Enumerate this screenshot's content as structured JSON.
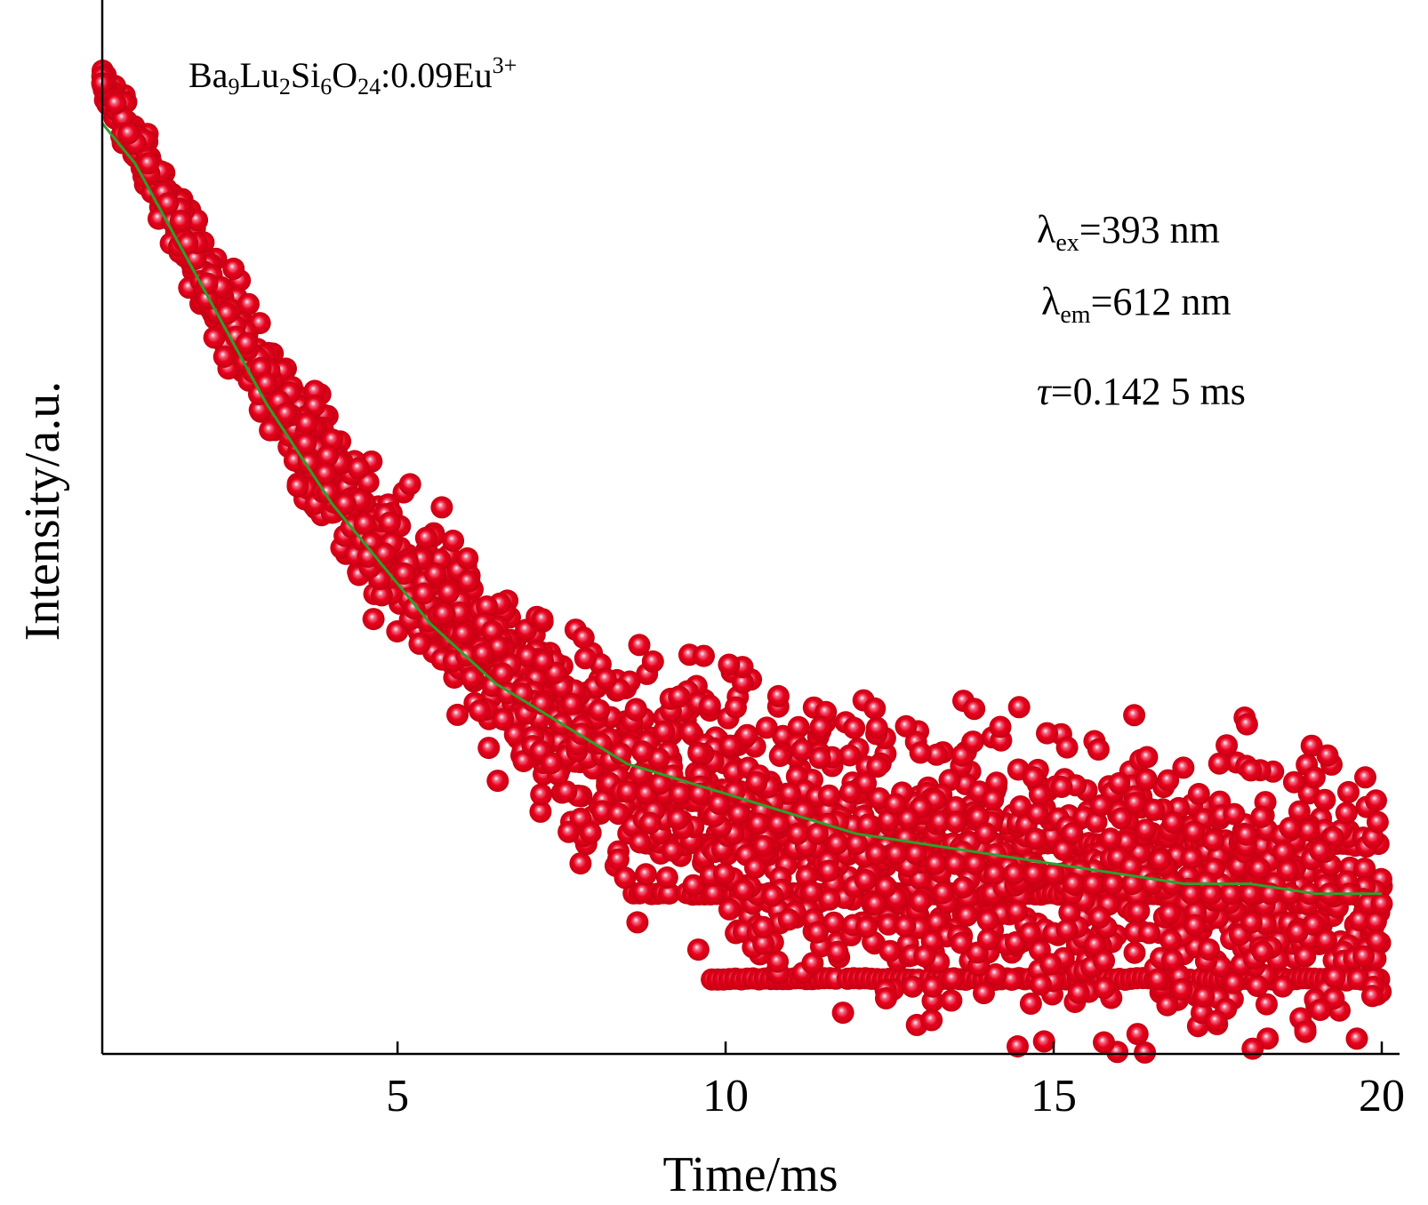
{
  "chart_data": {
    "type": "scatter",
    "title": "",
    "xlabel": "Time/ms",
    "ylabel": "Intensity/a.u.",
    "xlim": [
      0.5,
      20
    ],
    "ylim": [
      0,
      1
    ],
    "x_ticks": [
      5,
      10,
      15,
      20
    ],
    "y_ticks": [],
    "grid": false,
    "annotations": {
      "sample": {
        "base": "Ba",
        "s1": "9",
        "b2": "Lu",
        "s2": "2",
        "b3": "Si",
        "s3": "6",
        "b4": "O",
        "s4": "24",
        "b5": ":0.09Eu",
        "sup": "3+"
      },
      "excitation": {
        "sym": "λ",
        "sub": "ex",
        "rest": "=393 nm"
      },
      "emission": {
        "sym": "λ",
        "sub": "em",
        "rest": "=612 nm"
      },
      "lifetime": {
        "sym": "τ",
        "rest": "=0.142 5 ms"
      }
    },
    "colors": {
      "points": "#e8001c",
      "fit": "#2ca02c",
      "axis": "#000000"
    },
    "series": [
      {
        "kind": "points",
        "x": [
          0.5,
          0.7,
          0.9,
          1.2,
          1.5,
          1.8,
          2.1,
          2.4,
          2.7,
          3.0,
          3.3,
          3.6,
          3.9,
          4.2,
          4.5,
          4.8,
          5.1,
          5.4,
          5.7,
          6.0,
          6.3,
          6.6,
          6.9,
          7.2,
          7.5,
          7.8,
          8.1,
          8.4,
          8.7,
          9.0,
          9.3,
          9.6,
          9.9,
          10.2,
          10.5,
          10.8,
          11.1,
          11.4,
          11.7,
          12.0,
          12.3,
          12.6,
          12.9,
          13.2,
          13.5,
          13.8,
          14.1,
          14.4,
          14.7,
          15.0,
          15.3,
          15.6,
          15.9,
          16.2,
          16.5,
          16.8,
          17.1,
          17.4,
          17.7,
          18.0,
          18.3,
          18.6,
          18.9,
          19.2,
          19.5,
          19.8,
          20.0
        ],
        "y": [
          0.97,
          0.95,
          0.92,
          0.89,
          0.85,
          0.81,
          0.77,
          0.74,
          0.71,
          0.67,
          0.64,
          0.61,
          0.58,
          0.55,
          0.53,
          0.5,
          0.48,
          0.46,
          0.44,
          0.42,
          0.4,
          0.38,
          0.36,
          0.35,
          0.33,
          0.32,
          0.31,
          0.3,
          0.28,
          0.27,
          0.26,
          0.26,
          0.25,
          0.24,
          0.23,
          0.23,
          0.22,
          0.22,
          0.21,
          0.21,
          0.2,
          0.2,
          0.2,
          0.19,
          0.19,
          0.19,
          0.18,
          0.18,
          0.18,
          0.18,
          0.17,
          0.17,
          0.17,
          0.17,
          0.17,
          0.17,
          0.16,
          0.16,
          0.16,
          0.16,
          0.16,
          0.16,
          0.16,
          0.16,
          0.16,
          0.15,
          0.15
        ]
      },
      {
        "kind": "level-band",
        "x_start": [
          8.7,
          8.6,
          9.7
        ],
        "y": [
          0.21,
          0.16,
          0.075
        ]
      },
      {
        "kind": "fit",
        "x": [
          0.5,
          1.0,
          1.5,
          2.0,
          2.5,
          3.0,
          3.5,
          4.0,
          4.5,
          5.0,
          5.5,
          6.0,
          6.5,
          7.0,
          7.5,
          8.0,
          8.5,
          9.0,
          9.5,
          10.0,
          11.0,
          12.0,
          13.0,
          14.0,
          15.0,
          16.0,
          17.0,
          18.0,
          19.0,
          20.0
        ],
        "y": [
          0.93,
          0.89,
          0.83,
          0.77,
          0.71,
          0.65,
          0.6,
          0.55,
          0.51,
          0.47,
          0.43,
          0.4,
          0.37,
          0.35,
          0.33,
          0.31,
          0.29,
          0.28,
          0.27,
          0.26,
          0.24,
          0.22,
          0.21,
          0.2,
          0.19,
          0.18,
          0.17,
          0.17,
          0.16,
          0.16
        ]
      }
    ]
  }
}
